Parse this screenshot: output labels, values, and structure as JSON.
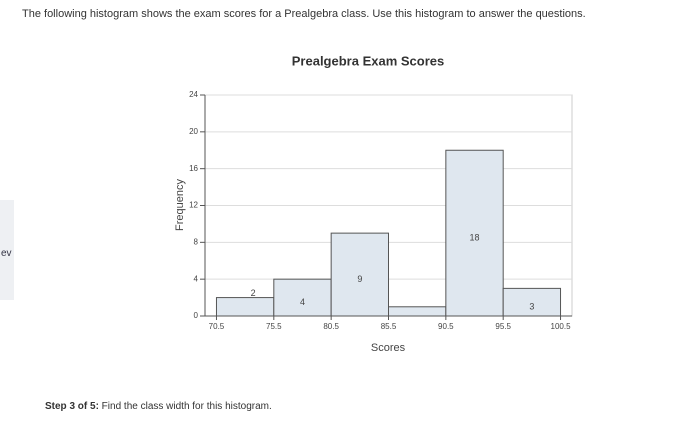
{
  "header": {
    "text": "The following histogram shows the exam scores for a Prealgebra class. Use this histogram to answer the questions."
  },
  "sidebar_fragment": "ev",
  "step": {
    "label": "Step 3 of 5:",
    "text": " Find the class width for this histogram."
  },
  "chart_data": {
    "type": "histogram",
    "title": "Prealgebra Exam Scores",
    "x_label": "Scores",
    "y_label": "Frequency",
    "bins": [
      70.5,
      75.5,
      80.5,
      85.5,
      90.5,
      95.5,
      100.5
    ],
    "values": [
      2,
      4,
      9,
      1,
      18,
      3
    ],
    "value_labels": [
      "2",
      "4",
      "9",
      null,
      "18",
      "3"
    ],
    "color": "#dfe7ef",
    "xlim": [
      69.5,
      101.5
    ],
    "xticks": [
      70.5,
      75.5,
      80.5,
      85.5,
      90.5,
      95.5,
      100.5
    ],
    "ylim": [
      0,
      24
    ],
    "yticks": [
      0,
      4,
      8,
      12,
      16,
      20,
      24
    ],
    "grid": true
  }
}
